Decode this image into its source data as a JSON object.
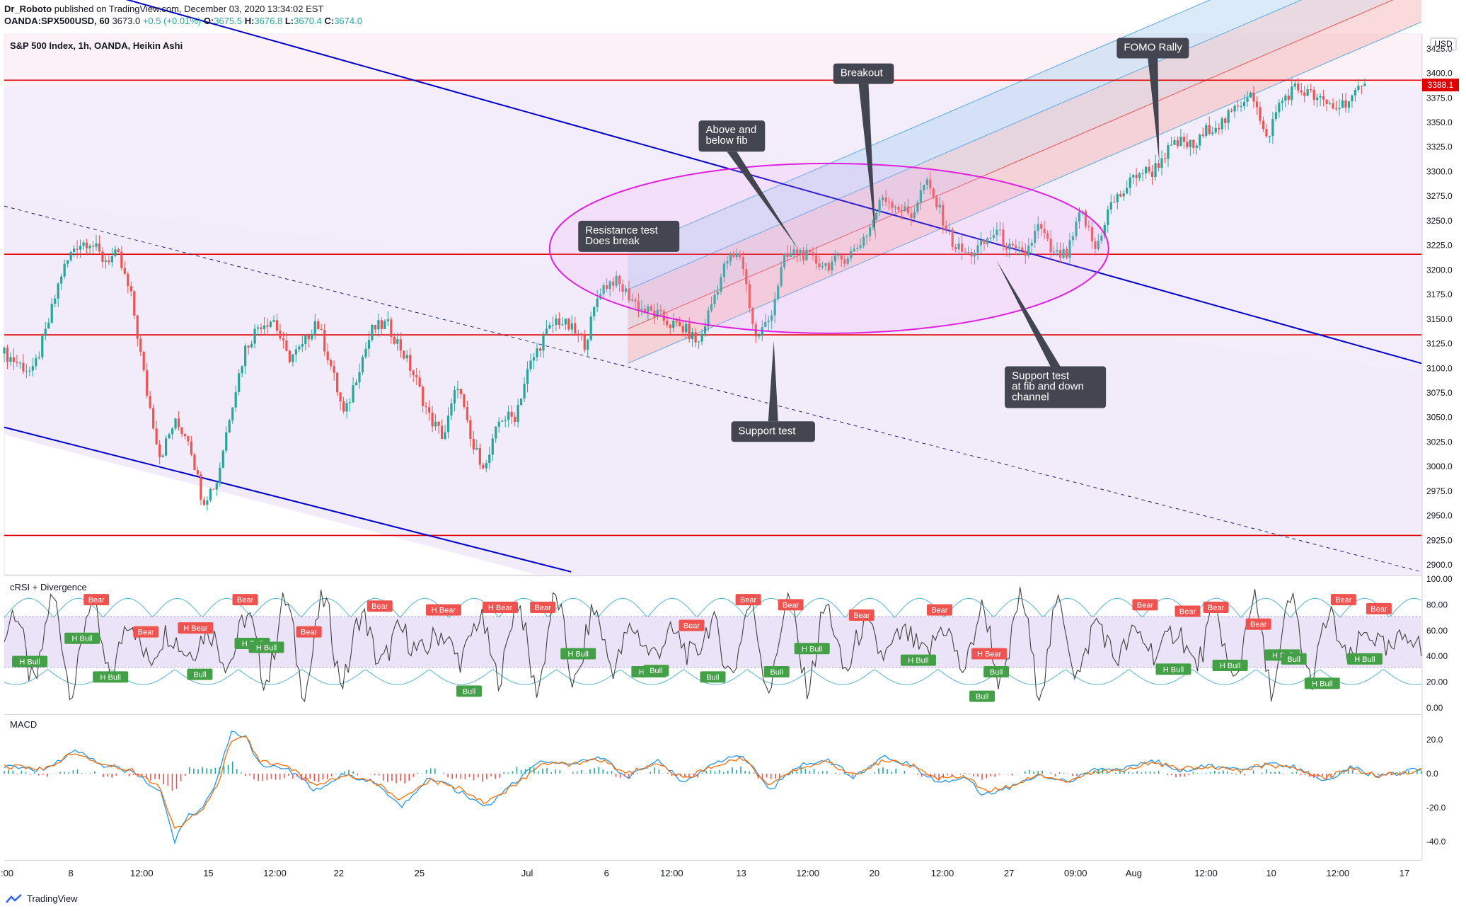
{
  "header": {
    "author": "Dr_Roboto",
    "published": "published on TradingView.com, December 03, 2020 13:34:02 EST",
    "symbol": "OANDA:SPX500USD, 60",
    "price": "3673.0",
    "change": "+0.5 (+0.01%)",
    "open_label": "O:",
    "open": "3675.5",
    "high_label": "H:",
    "high": "3676.8",
    "low_label": "L:",
    "low": "3670.4",
    "close_label": "C:",
    "close": "3674.0"
  },
  "footer": {
    "brand": "TradingView"
  },
  "colors": {
    "up": "#26a69a",
    "down": "#ef5350",
    "trendline": "#0000cc",
    "hline": "#e00000",
    "ellipse": "#e020e0",
    "channel_blue": "#5aa9e6",
    "channel_red": "#ef5350",
    "callout_bg": "#434651",
    "macd": "#2196f3",
    "signal": "#ff6d00",
    "rsi": "#404040"
  },
  "chart_data": [
    {
      "type": "candlestick",
      "title": "S&P 500 Index, 1h, OANDA, Heikin Ashi",
      "currency": "USD",
      "ylim": [
        2890,
        3440
      ],
      "y_ticks": [
        "3425.0",
        "3400.0",
        "3375.0",
        "3350.0",
        "3325.0",
        "3300.0",
        "3275.0",
        "3250.0",
        "3225.0",
        "3200.0",
        "3175.0",
        "3150.0",
        "3125.0",
        "3100.0",
        "3075.0",
        "3050.0",
        "3025.0",
        "3000.0",
        "2975.0",
        "2950.0",
        "2925.0",
        "2900.0"
      ],
      "last_price": "3388.1",
      "x_ticks": [
        ":00",
        "8",
        "12:00",
        "15",
        "12:00",
        "22",
        "25",
        "Jul",
        "6",
        "12:00",
        "13",
        "12:00",
        "20",
        "12:00",
        "27",
        "09:00",
        "Aug",
        "12:00",
        "10",
        "12:00",
        "17"
      ],
      "horizontal_levels": [
        3393,
        3216,
        3134,
        2930
      ],
      "close_path": [
        [
          0,
          3115
        ],
        [
          2,
          3095
        ],
        [
          3,
          3140
        ],
        [
          4,
          3195
        ],
        [
          5,
          3225
        ],
        [
          6,
          3230
        ],
        [
          7,
          3210
        ],
        [
          8,
          3215
        ],
        [
          9,
          3170
        ],
        [
          10,
          3080
        ],
        [
          11,
          3010
        ],
        [
          12,
          3045
        ],
        [
          13,
          3030
        ],
        [
          14,
          2965
        ],
        [
          15,
          2985
        ],
        [
          16,
          3060
        ],
        [
          17,
          3120
        ],
        [
          18,
          3145
        ],
        [
          19,
          3150
        ],
        [
          20,
          3110
        ],
        [
          21,
          3120
        ],
        [
          22,
          3150
        ],
        [
          23,
          3105
        ],
        [
          24,
          3050
        ],
        [
          25,
          3100
        ],
        [
          26,
          3140
        ],
        [
          27,
          3145
        ],
        [
          28,
          3120
        ],
        [
          29,
          3090
        ],
        [
          30,
          3050
        ],
        [
          31,
          3030
        ],
        [
          32,
          3085
        ],
        [
          33,
          3020
        ],
        [
          34,
          3000
        ],
        [
          35,
          3050
        ],
        [
          36,
          3050
        ],
        [
          37,
          3100
        ],
        [
          38,
          3130
        ],
        [
          39,
          3150
        ],
        [
          40,
          3140
        ],
        [
          41,
          3125
        ],
        [
          42,
          3180
        ],
        [
          43,
          3190
        ],
        [
          44,
          3175
        ],
        [
          45,
          3160
        ],
        [
          46,
          3155
        ],
        [
          47,
          3145
        ],
        [
          48,
          3140
        ],
        [
          49,
          3125
        ],
        [
          50,
          3170
        ],
        [
          51,
          3210
        ],
        [
          52,
          3215
        ],
        [
          53,
          3130
        ],
        [
          54,
          3150
        ],
        [
          55,
          3210
        ],
        [
          56,
          3220
        ],
        [
          57,
          3210
        ],
        [
          58,
          3205
        ],
        [
          59,
          3210
        ],
        [
          60,
          3220
        ],
        [
          61,
          3240
        ],
        [
          62,
          3275
        ],
        [
          63,
          3265
        ],
        [
          64,
          3255
        ],
        [
          65,
          3290
        ],
        [
          66,
          3260
        ],
        [
          67,
          3225
        ],
        [
          68,
          3215
        ],
        [
          69,
          3225
        ],
        [
          70,
          3240
        ],
        [
          71,
          3220
        ],
        [
          72,
          3215
        ],
        [
          73,
          3245
        ],
        [
          74,
          3215
        ],
        [
          75,
          3215
        ],
        [
          76,
          3260
        ],
        [
          77,
          3220
        ],
        [
          78,
          3265
        ],
        [
          79,
          3280
        ],
        [
          80,
          3300
        ],
        [
          81,
          3300
        ],
        [
          82,
          3320
        ],
        [
          83,
          3330
        ],
        [
          84,
          3325
        ],
        [
          85,
          3345
        ],
        [
          86,
          3350
        ],
        [
          87,
          3365
        ],
        [
          88,
          3385
        ],
        [
          89,
          3330
        ],
        [
          90,
          3370
        ],
        [
          91,
          3385
        ],
        [
          92,
          3380
        ],
        [
          93,
          3370
        ],
        [
          94,
          3365
        ],
        [
          95,
          3375
        ],
        [
          96,
          3385
        ]
      ],
      "pitchfork_trendlines": [
        {
          "name": "upper-trendline",
          "x": [
            0,
            100
          ],
          "y": [
            3510,
            3105
          ]
        },
        {
          "name": "lower-trendline",
          "x": [
            0,
            40
          ],
          "y": [
            3040,
            2893
          ]
        }
      ],
      "dashed_trendline": {
        "x": [
          0,
          100
        ],
        "y": [
          3265,
          2893
        ]
      },
      "fib_channel": {
        "x0": 44,
        "x1": 100,
        "bottom0": 3105,
        "mid0": 3140,
        "top0": 3180,
        "slope": 6.2
      },
      "annotations": [
        {
          "text": "Resistance test\nDoes break",
          "box_x": 40.5,
          "box_y": 3250,
          "tip_x": 51,
          "tip_y": 3220
        },
        {
          "text": "Above and\nbelow fib",
          "box_x": 49,
          "box_y": 3352,
          "tip_x": 56,
          "tip_y": 3222
        },
        {
          "text": "Breakout",
          "box_x": 58.5,
          "box_y": 3410,
          "tip_x": 61.5,
          "tip_y": 3230
        },
        {
          "text": "FOMO Rally",
          "box_x": 78.5,
          "box_y": 3436,
          "tip_x": 81.5,
          "tip_y": 3310
        },
        {
          "text": "Support test",
          "box_x": 51.3,
          "box_y": 3046,
          "tip_x": 54.3,
          "tip_y": 3128
        },
        {
          "text": "Support test\nat fib and down\nchannel",
          "box_x": 70.6,
          "box_y": 3102,
          "tip_x": 70,
          "tip_y": 3210
        }
      ]
    },
    {
      "type": "line",
      "title": "cRSI + Divergence",
      "ylim": [
        0,
        100
      ],
      "y_ticks": [
        "100.00",
        "80.00",
        "60.00",
        "40.00",
        "20.00",
        "0.00"
      ],
      "band": [
        30,
        70
      ],
      "labels": [
        {
          "text": "Bear",
          "x": 6.5,
          "y": 84
        },
        {
          "text": "Bear",
          "x": 17,
          "y": 84
        },
        {
          "text": "Bear",
          "x": 26.5,
          "y": 79
        },
        {
          "text": "Bear",
          "x": 38,
          "y": 78
        },
        {
          "text": "Bear",
          "x": 55.5,
          "y": 80
        },
        {
          "text": "Bear",
          "x": 66,
          "y": 76
        },
        {
          "text": "Bear",
          "x": 80.5,
          "y": 80
        },
        {
          "text": "Bear",
          "x": 94.5,
          "y": 84
        },
        {
          "text": "Bear",
          "x": 97,
          "y": 77
        },
        {
          "text": "Bear",
          "x": 52.5,
          "y": 84
        },
        {
          "text": "Bear",
          "x": 60.5,
          "y": 72
        },
        {
          "text": "Bear",
          "x": 48.5,
          "y": 64
        },
        {
          "text": "Bear",
          "x": 21.5,
          "y": 59
        },
        {
          "text": "Bear",
          "x": 10,
          "y": 59
        },
        {
          "text": "Bear",
          "x": 83.5,
          "y": 75
        },
        {
          "text": "Bear",
          "x": 85.5,
          "y": 78
        },
        {
          "text": "Bear",
          "x": 88.5,
          "y": 65
        },
        {
          "text": "H Bear",
          "x": 13.5,
          "y": 62
        },
        {
          "text": "H Bear",
          "x": 31,
          "y": 76
        },
        {
          "text": "H Bear",
          "x": 35,
          "y": 78
        },
        {
          "text": "H Bear",
          "x": 69.5,
          "y": 42
        },
        {
          "text": "H Bull",
          "x": 5.5,
          "y": 54
        },
        {
          "text": "H Bull",
          "x": 1.8,
          "y": 36
        },
        {
          "text": "H Bull",
          "x": 7.5,
          "y": 24
        },
        {
          "text": "H Bull",
          "x": 17.5,
          "y": 50
        },
        {
          "text": "H Bull",
          "x": 18.5,
          "y": 47
        },
        {
          "text": "H Bull",
          "x": 40.5,
          "y": 42
        },
        {
          "text": "H Bull",
          "x": 45.5,
          "y": 28
        },
        {
          "text": "H Bull",
          "x": 57,
          "y": 46
        },
        {
          "text": "H Bull",
          "x": 64.5,
          "y": 37
        },
        {
          "text": "H Bull",
          "x": 82.5,
          "y": 30
        },
        {
          "text": "H Bull",
          "x": 86.5,
          "y": 33
        },
        {
          "text": "H Bull",
          "x": 90.2,
          "y": 41
        },
        {
          "text": "H Bull",
          "x": 96,
          "y": 38
        },
        {
          "text": "H Bull",
          "x": 93,
          "y": 19
        },
        {
          "text": "Bull",
          "x": 13.8,
          "y": 26
        },
        {
          "text": "Bull",
          "x": 32.8,
          "y": 13
        },
        {
          "text": "Bull",
          "x": 50,
          "y": 24
        },
        {
          "text": "Bull",
          "x": 54.5,
          "y": 28
        },
        {
          "text": "Bull",
          "x": 46,
          "y": 29
        },
        {
          "text": "Bull",
          "x": 69,
          "y": 9
        },
        {
          "text": "Bull",
          "x": 70,
          "y": 28
        },
        {
          "text": "Bull",
          "x": 91,
          "y": 38
        }
      ]
    },
    {
      "type": "line",
      "title": "MACD",
      "ylim": [
        -48,
        28
      ],
      "y_ticks": [
        "20.0",
        "0.0",
        "-20.0",
        "-40.0"
      ],
      "series": [
        {
          "values": [
            [
              0,
              5
            ],
            [
              3,
              2
            ],
            [
              5,
              15
            ],
            [
              7,
              5
            ],
            [
              9,
              1
            ],
            [
              11,
              -10
            ],
            [
              12,
              -40
            ],
            [
              13,
              -25
            ],
            [
              14,
              -20
            ],
            [
              15,
              -5
            ],
            [
              16,
              25
            ],
            [
              17,
              22
            ],
            [
              18,
              5
            ],
            [
              20,
              3
            ],
            [
              22,
              -10
            ],
            [
              24,
              0
            ],
            [
              26,
              -5
            ],
            [
              28,
              -20
            ],
            [
              30,
              -2
            ],
            [
              32,
              -10
            ],
            [
              34,
              -20
            ],
            [
              36,
              -5
            ],
            [
              38,
              8
            ],
            [
              40,
              5
            ],
            [
              42,
              10
            ],
            [
              44,
              -2
            ],
            [
              46,
              8
            ],
            [
              48,
              -5
            ],
            [
              50,
              5
            ],
            [
              52,
              12
            ],
            [
              54,
              -10
            ],
            [
              56,
              5
            ],
            [
              58,
              8
            ],
            [
              60,
              -2
            ],
            [
              62,
              10
            ],
            [
              64,
              5
            ],
            [
              66,
              -5
            ],
            [
              68,
              -2
            ],
            [
              69,
              -12
            ],
            [
              71,
              -8
            ],
            [
              73,
              0
            ],
            [
              75,
              -5
            ],
            [
              77,
              2
            ],
            [
              79,
              3
            ],
            [
              81,
              8
            ],
            [
              83,
              2
            ],
            [
              85,
              5
            ],
            [
              87,
              2
            ],
            [
              89,
              6
            ],
            [
              91,
              4
            ],
            [
              93,
              -5
            ],
            [
              95,
              4
            ],
            [
              97,
              -2
            ],
            [
              100,
              3
            ]
          ]
        },
        {
          "values": [
            [
              0,
              4
            ],
            [
              3,
              3
            ],
            [
              5,
              13
            ],
            [
              7,
              6
            ],
            [
              9,
              2
            ],
            [
              11,
              -7
            ],
            [
              12,
              -33
            ],
            [
              13,
              -27
            ],
            [
              14,
              -22
            ],
            [
              15,
              -8
            ],
            [
              16,
              20
            ],
            [
              17,
              22
            ],
            [
              18,
              8
            ],
            [
              20,
              4
            ],
            [
              22,
              -7
            ],
            [
              24,
              -1
            ],
            [
              26,
              -4
            ],
            [
              28,
              -16
            ],
            [
              30,
              -4
            ],
            [
              32,
              -8
            ],
            [
              34,
              -17
            ],
            [
              36,
              -7
            ],
            [
              38,
              6
            ],
            [
              40,
              5
            ],
            [
              42,
              8
            ],
            [
              44,
              0
            ],
            [
              46,
              6
            ],
            [
              48,
              -3
            ],
            [
              50,
              4
            ],
            [
              52,
              10
            ],
            [
              54,
              -7
            ],
            [
              56,
              3
            ],
            [
              58,
              7
            ],
            [
              60,
              -1
            ],
            [
              62,
              8
            ],
            [
              64,
              5
            ],
            [
              66,
              -3
            ],
            [
              68,
              -2
            ],
            [
              69,
              -10
            ],
            [
              71,
              -8
            ],
            [
              73,
              -1
            ],
            [
              75,
              -4
            ],
            [
              77,
              1
            ],
            [
              79,
              2
            ],
            [
              81,
              7
            ],
            [
              83,
              3
            ],
            [
              85,
              4
            ],
            [
              87,
              2
            ],
            [
              89,
              5
            ],
            [
              91,
              4
            ],
            [
              93,
              -3
            ],
            [
              95,
              3
            ],
            [
              97,
              -1
            ],
            [
              100,
              2
            ]
          ]
        }
      ]
    }
  ]
}
